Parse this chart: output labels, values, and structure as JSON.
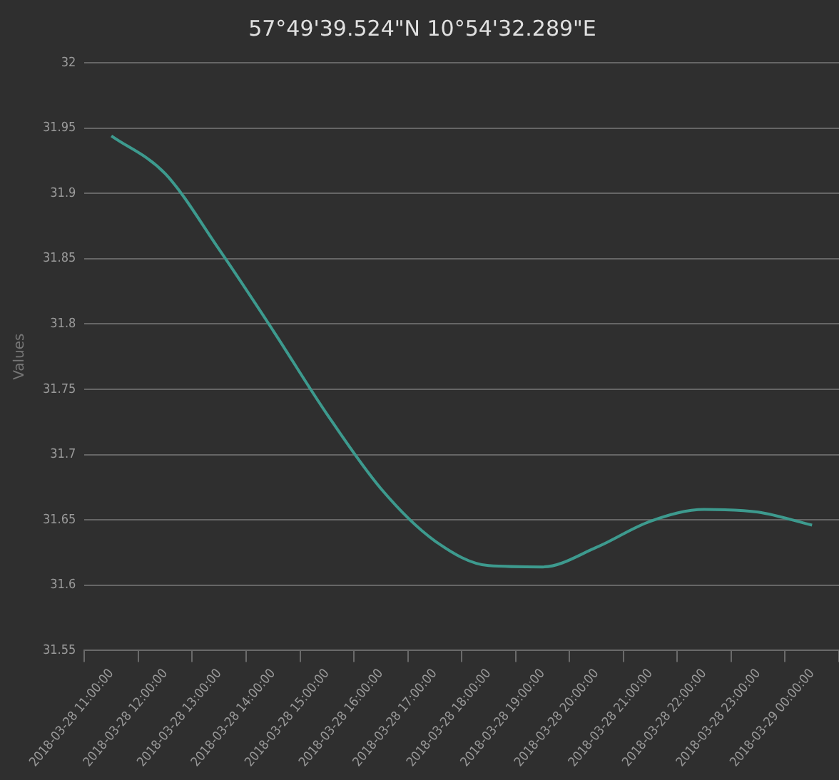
{
  "chart_data": {
    "type": "line",
    "title": "57°49'39.524\"N 10°54'32.289\"E",
    "ylabel": "Values",
    "categories": [
      "2018-03-28 11:00:00",
      "2018-03-28 12:00:00",
      "2018-03-28 13:00:00",
      "2018-03-28 14:00:00",
      "2018-03-28 15:00:00",
      "2018-03-28 16:00:00",
      "2018-03-28 17:00:00",
      "2018-03-28 18:00:00",
      "2018-03-28 19:00:00",
      "2018-03-28 20:00:00",
      "2018-03-28 21:00:00",
      "2018-03-28 22:00:00",
      "2018-03-28 23:00:00",
      "2018-03-29 00:00:00"
    ],
    "series": [
      {
        "color": "#3d9a8e",
        "values": [
          31.944,
          31.915,
          31.857,
          31.795,
          31.731,
          31.674,
          31.634,
          31.615,
          31.614,
          31.629,
          31.649,
          31.658,
          31.656,
          31.646
        ]
      }
    ],
    "ylim": [
      31.55,
      32
    ],
    "yticks": [
      31.55,
      31.6,
      31.65,
      31.7,
      31.75,
      31.8,
      31.85,
      31.9,
      31.95,
      32
    ],
    "grid": "y",
    "legend": false,
    "marker": "none",
    "line_style": "solid"
  }
}
